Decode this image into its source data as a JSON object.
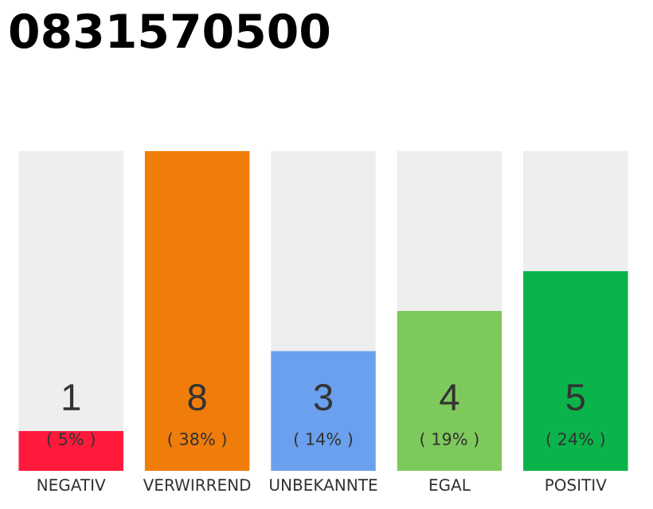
{
  "chart_data": {
    "type": "bar",
    "title": "0831570500",
    "categories": [
      "NEGATIV",
      "VERWIRREND",
      "UNBEKANNTE",
      "EGAL",
      "POSITIV"
    ],
    "ylim": [
      0,
      8
    ],
    "tick_labels": "x",
    "grid": false,
    "legend": false,
    "stacked": true,
    "series": [
      {
        "colors": [
          "#ff1a3c",
          "#f07d0a",
          "#6aa0ee",
          "#7ec95c",
          "#0ab44a"
        ],
        "values": [
          1,
          8,
          3,
          4,
          5
        ],
        "value_labels": [
          "1",
          "8",
          "3",
          "4",
          "5"
        ]
      },
      {
        "color": "#eeeeee",
        "values": [
          7,
          0,
          5,
          4,
          3
        ]
      }
    ],
    "annotations": [
      "( 5% )",
      "( 38% )",
      "( 14% )",
      "( 19% )",
      "( 24% )"
    ]
  }
}
